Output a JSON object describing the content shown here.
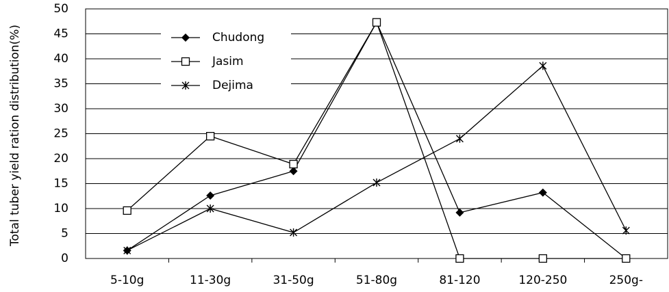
{
  "chart_data": {
    "type": "line",
    "y_label": "Total tuber yield ration distribution(%)",
    "categories": [
      "5-10g",
      "11-30g",
      "31-50g",
      "51-80g",
      "81-120",
      "120-250",
      "250g-"
    ],
    "series": [
      {
        "name": "Chudong",
        "color": "#000000",
        "marker": "diamond",
        "values": [
          1.6,
          12.6,
          17.5,
          47.3,
          9.2,
          13.2,
          0
        ]
      },
      {
        "name": "Jasim",
        "color": "#000000",
        "marker": "square",
        "values": [
          9.6,
          24.5,
          18.9,
          47.3,
          0,
          0,
          0
        ]
      },
      {
        "name": "Dejima",
        "color": "#000000",
        "marker": "asterisk",
        "values": [
          1.6,
          10,
          5.2,
          15.2,
          24,
          38.6,
          5.6
        ]
      }
    ],
    "ylim": [
      0,
      50
    ],
    "yticks": [
      0,
      5,
      10,
      15,
      20,
      25,
      30,
      35,
      40,
      45,
      50
    ],
    "grid": true,
    "legend": "upper left"
  }
}
